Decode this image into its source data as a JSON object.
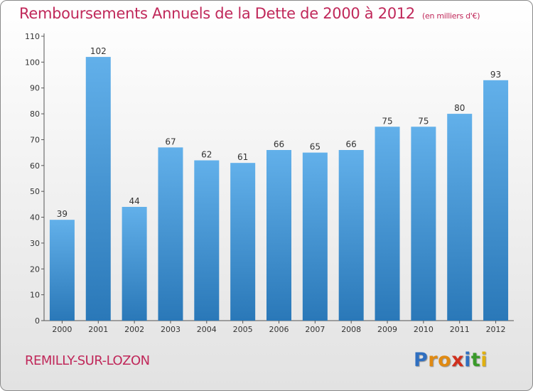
{
  "header": {
    "title": "Remboursements Annuels de la Dette de 2000 à 2012",
    "subtitle": "(en milliers d'€)"
  },
  "footer": {
    "commune": "REMILLY-SUR-LOZON",
    "logo_letters": [
      "P",
      "r",
      "o",
      "x",
      "i",
      "t",
      "i"
    ]
  },
  "colors": {
    "title": "#c0285a",
    "bar_top": "#62b0ea",
    "bar_bottom": "#2a78b8",
    "logo": [
      "#2f6fc0",
      "#e08a12",
      "#e08a12",
      "#d0301e",
      "#2f6fc0",
      "#3a9a2a",
      "#e0b010"
    ]
  },
  "chart_data": {
    "type": "bar",
    "title": "Remboursements Annuels de la Dette de 2000 à 2012",
    "subtitle": "(en milliers d'€)",
    "categories": [
      "2000",
      "2001",
      "2002",
      "2003",
      "2004",
      "2005",
      "2006",
      "2007",
      "2008",
      "2009",
      "2010",
      "2011",
      "2012"
    ],
    "values": [
      39,
      102,
      44,
      67,
      62,
      61,
      66,
      65,
      66,
      75,
      75,
      80,
      93
    ],
    "ylim": [
      0,
      110
    ],
    "yticks": [
      0,
      10,
      20,
      30,
      40,
      50,
      60,
      70,
      80,
      90,
      100,
      110
    ],
    "grid": false,
    "legend": "none"
  }
}
